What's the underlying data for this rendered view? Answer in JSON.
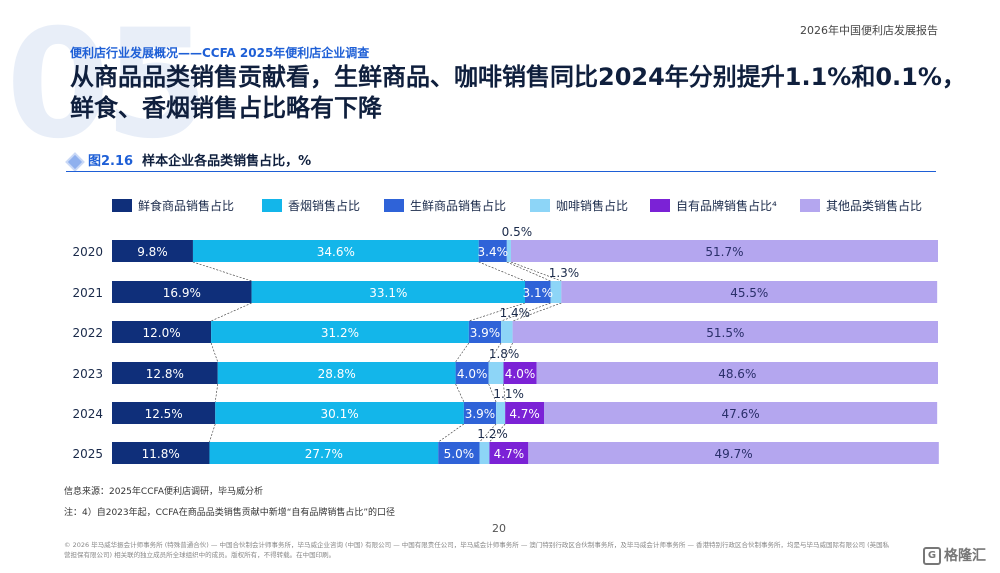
{
  "header": {
    "report_title": "2026年中国便利店发展报告",
    "section_number": "05",
    "section_title": "便利店行业发展概况——CCFA 2025年便利店企业调查",
    "headline": "从商品品类销售贡献看，生鲜商品、咖啡销售同比2024年分别提升1.1%和0.1%，鲜食、香烟销售占比略有下降"
  },
  "figure": {
    "number": "图2.16",
    "title": "样本企业各品类销售占比，%"
  },
  "chart_data": {
    "type": "bar",
    "orientation": "horizontal",
    "stacked": true,
    "categories": [
      "2020",
      "2021",
      "2022",
      "2023",
      "2024",
      "2025"
    ],
    "series": [
      {
        "name": "鲜食商品销售占比",
        "color": "#0f2f7a",
        "values": [
          9.8,
          16.9,
          12.0,
          12.8,
          12.5,
          11.8
        ],
        "labels": [
          "9.8%",
          "16.9%",
          "12.0%",
          "12.8%",
          "12.5%",
          "11.8%"
        ]
      },
      {
        "name": "香烟销售占比",
        "color": "#13b6ea",
        "values": [
          34.6,
          33.1,
          31.2,
          28.8,
          30.1,
          27.7
        ],
        "labels": [
          "34.6%",
          "33.1%",
          "31.2%",
          "28.8%",
          "30.1%",
          "27.7%"
        ]
      },
      {
        "name": "生鲜商品销售占比",
        "color": "#2f63d8",
        "values": [
          3.4,
          3.1,
          3.9,
          4.0,
          3.9,
          5.0
        ],
        "labels": [
          "3.4%",
          "3.1%",
          "3.9%",
          "4.0%",
          "3.9%",
          "5.0%"
        ]
      },
      {
        "name": "咖啡销售占比",
        "color": "#8dd5f7",
        "values": [
          0.5,
          1.3,
          1.4,
          1.8,
          1.1,
          1.2
        ],
        "labels": [
          "0.5%",
          "1.3%",
          "1.4%",
          "1.8%",
          "1.1%",
          "1.2%"
        ]
      },
      {
        "name": "自有品牌销售占比⁴",
        "color": "#7b22d6",
        "values": [
          0,
          0,
          0,
          4.0,
          4.7,
          4.7
        ],
        "labels": [
          "",
          "",
          "",
          "4.0%",
          "4.7%",
          "4.7%"
        ]
      },
      {
        "name": "其他品类销售占比",
        "color": "#b4a6ef",
        "values": [
          51.7,
          45.5,
          51.5,
          48.6,
          47.6,
          49.7
        ],
        "labels": [
          "51.7%",
          "45.5%",
          "51.5%",
          "48.6%",
          "47.6%",
          "49.7%"
        ]
      }
    ],
    "xlim": [
      0,
      100
    ],
    "legend_position": "top",
    "connector_lines": true
  },
  "footer": {
    "source": "信息来源：2025年CCFA便利店调研，毕马威分析",
    "note": "注：4）自2023年起，CCFA在商品品类销售贡献中新增“自有品牌销售占比”的口径",
    "page_number": "20",
    "copyright": "© 2026 毕马威华振会计师事务所 (特殊普通合伙) — 中国合伙制会计师事务所，毕马威企业咨询 (中国) 有限公司 — 中国有限责任公司，毕马威会计师事务所 — 澳门特别行政区合伙制事务所，及毕马威会计师事务所 — 香港特别行政区合伙制事务所，均是与毕马威国际有限公司 (英国私营担保有限公司) 相关联的独立成员所全球组织中的成员。版权所有，不得转载。在中国印刷。",
    "watermark": "格隆汇"
  }
}
